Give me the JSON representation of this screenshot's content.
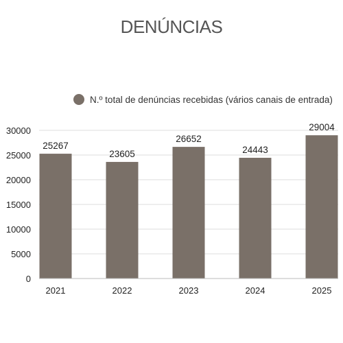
{
  "chart_data": {
    "type": "bar",
    "title": "DENÚNCIAS",
    "categories": [
      "2021",
      "2022",
      "2023",
      "2024",
      "2025"
    ],
    "series": [
      {
        "name": "N.º total de denúncias recebidas (vários canais de entrada)",
        "values": [
          25267,
          23605,
          26652,
          24443,
          29004
        ],
        "color": "#7a7068"
      }
    ],
    "ylim": [
      0,
      30000
    ],
    "yticks": [
      "0",
      "5000",
      "10000",
      "15000",
      "20000",
      "25000",
      "30000"
    ],
    "grid": true,
    "legend_position": "top",
    "data_labels": true
  }
}
